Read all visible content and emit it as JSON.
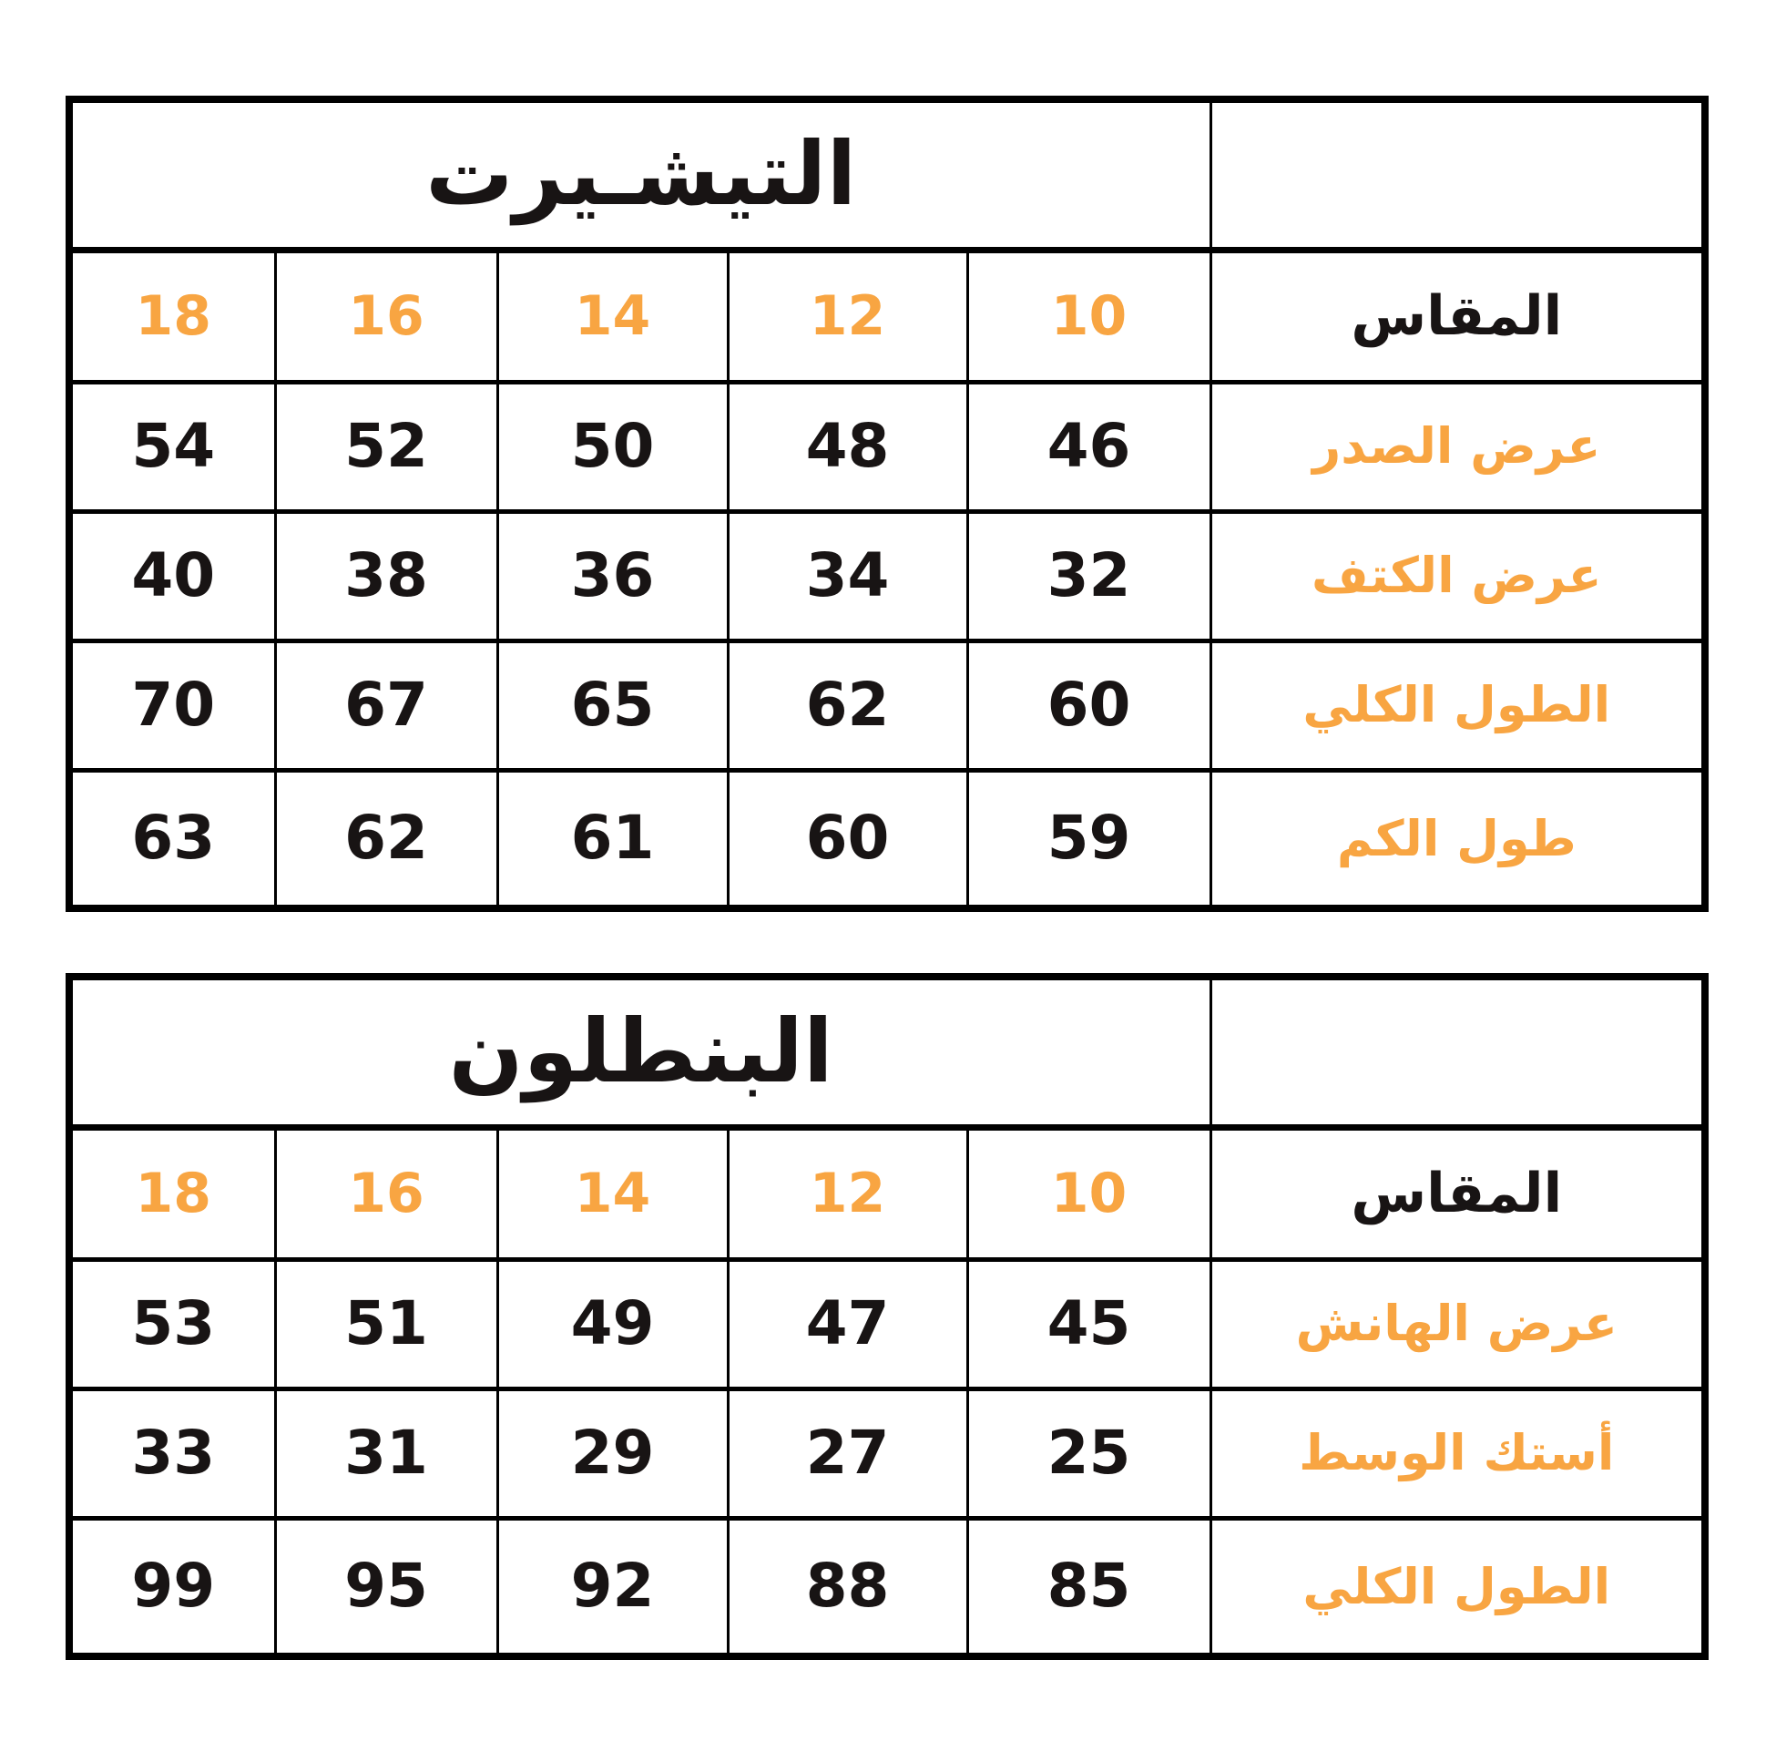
{
  "colors": {
    "accent": "#F8A542",
    "ink": "#181414",
    "border": "#000000",
    "background": "#FFFFFF"
  },
  "chart_data": [
    {
      "type": "table",
      "title": "التيشـيرت",
      "header": {
        "label": "المقاس",
        "sizes": [
          "10",
          "12",
          "14",
          "16",
          "18"
        ]
      },
      "rows": [
        {
          "label": "عرض الصدر",
          "values": [
            "46",
            "48",
            "50",
            "52",
            "54"
          ]
        },
        {
          "label": "عرض الكتف",
          "values": [
            "32",
            "34",
            "36",
            "38",
            "40"
          ]
        },
        {
          "label": "الطول الكلي",
          "values": [
            "60",
            "62",
            "65",
            "67",
            "70"
          ]
        },
        {
          "label": "طول الكم",
          "values": [
            "59",
            "60",
            "61",
            "62",
            "63"
          ]
        }
      ],
      "layout": {
        "direction": "rtl",
        "label_column_side": "right",
        "size_order_displayed_left_to_right": [
          "18",
          "16",
          "14",
          "12",
          "10"
        ]
      }
    },
    {
      "type": "table",
      "title": "البنطلون",
      "header": {
        "label": "المقاس",
        "sizes": [
          "10",
          "12",
          "14",
          "16",
          "18"
        ]
      },
      "rows": [
        {
          "label": "عرض الهانش",
          "values": [
            "45",
            "47",
            "49",
            "51",
            "53"
          ]
        },
        {
          "label": "أستك الوسط",
          "values": [
            "25",
            "27",
            "29",
            "31",
            "33"
          ]
        },
        {
          "label": "الطول الكلي",
          "values": [
            "85",
            "88",
            "92",
            "95",
            "99"
          ]
        }
      ],
      "layout": {
        "direction": "rtl",
        "label_column_side": "right",
        "size_order_displayed_left_to_right": [
          "18",
          "16",
          "14",
          "12",
          "10"
        ]
      }
    }
  ]
}
